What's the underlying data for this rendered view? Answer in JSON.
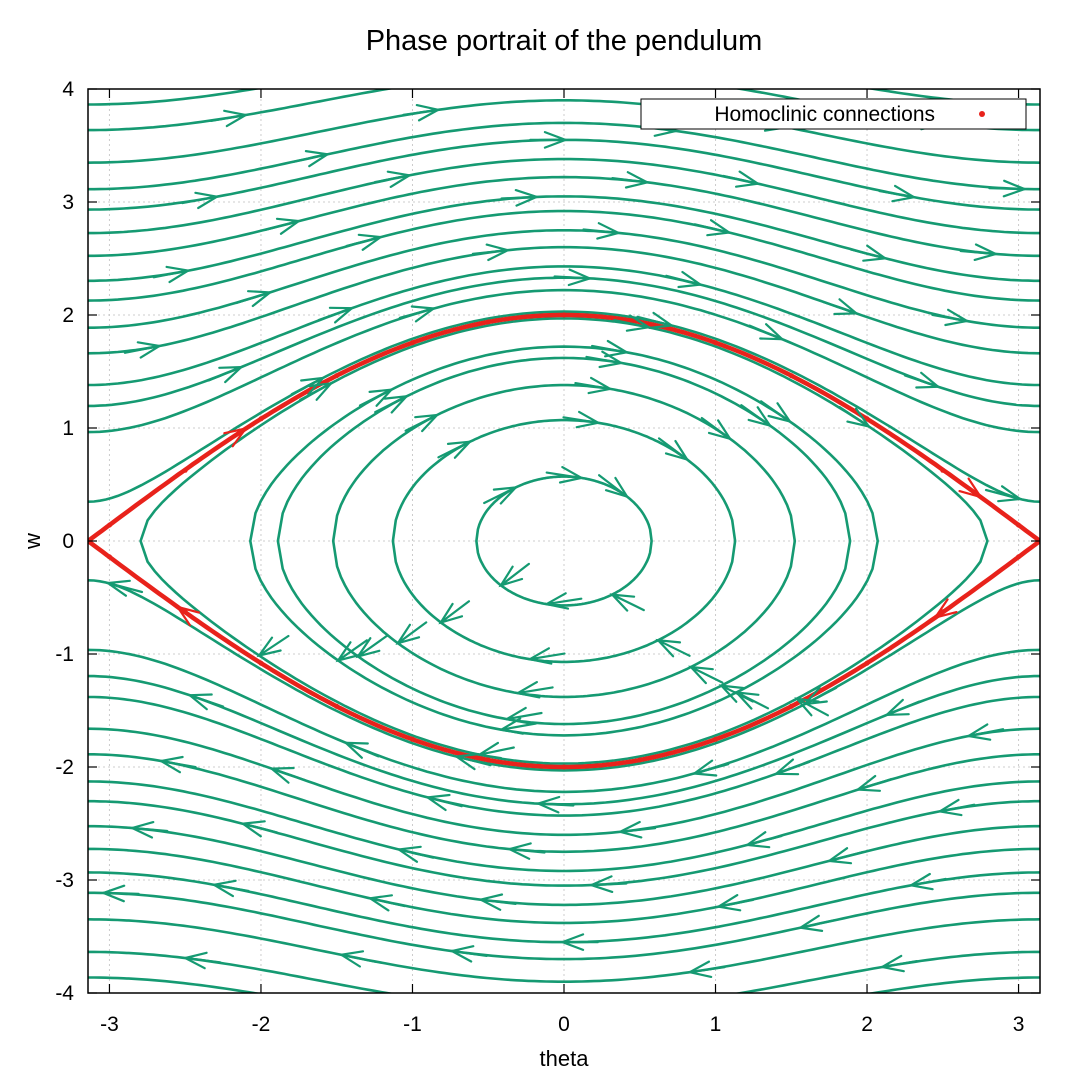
{
  "chart_data": {
    "type": "line",
    "title": "Phase portrait of the pendulum",
    "xlabel": "theta",
    "ylabel": "w",
    "xlim": [
      -3.14159,
      3.14159
    ],
    "ylim": [
      -4,
      4
    ],
    "x_ticks": [
      -3,
      -2,
      -1,
      0,
      1,
      2,
      3
    ],
    "y_ticks": [
      -4,
      -3,
      -2,
      -1,
      0,
      1,
      2,
      3,
      4
    ],
    "grid": true,
    "legend": {
      "position": "top-right",
      "entries": [
        "Homoclinic connections"
      ]
    },
    "colors": {
      "trajectories": "#159a72",
      "homoclinic": "#e8221b",
      "grid": "#cccccc"
    },
    "system": "d(theta)/dt = w, d(w)/dt = -sin(theta)",
    "series": [
      {
        "name": "Homoclinic connections",
        "kind": "separatrix",
        "energy_w0": 2,
        "points": [
          [
            -3.14159,
            0
          ],
          [
            -3,
            0.141
          ],
          [
            -2.5,
            0.626
          ],
          [
            -2,
            1.081
          ],
          [
            -1.5,
            1.463
          ],
          [
            -1,
            1.755
          ],
          [
            -0.5,
            1.938
          ],
          [
            0,
            2
          ],
          [
            0.5,
            1.938
          ],
          [
            1,
            1.755
          ],
          [
            1.5,
            1.463
          ],
          [
            2,
            1.081
          ],
          [
            2.5,
            0.626
          ],
          [
            3,
            0.141
          ],
          [
            3.14159,
            0
          ]
        ]
      },
      {
        "name": "",
        "kind": "closed",
        "energy_w0": 0.57
      },
      {
        "name": "",
        "kind": "closed",
        "energy_w0": 1.07
      },
      {
        "name": "",
        "kind": "closed",
        "energy_w0": 1.38
      },
      {
        "name": "",
        "kind": "closed",
        "energy_w0": 1.62
      },
      {
        "name": "",
        "kind": "closed",
        "energy_w0": 1.72
      },
      {
        "name": "",
        "kind": "closed",
        "energy_w0": 1.97
      },
      {
        "name": "",
        "kind": "rotating",
        "energy_w0": 2.03
      },
      {
        "name": "",
        "kind": "rotating",
        "energy_w0": 2.22
      },
      {
        "name": "",
        "kind": "rotating",
        "energy_w0": 2.33
      },
      {
        "name": "",
        "kind": "rotating",
        "energy_w0": 2.43
      },
      {
        "name": "",
        "kind": "rotating",
        "energy_w0": 2.6
      },
      {
        "name": "",
        "kind": "rotating",
        "energy_w0": 2.75
      },
      {
        "name": "",
        "kind": "rotating",
        "energy_w0": 2.92
      },
      {
        "name": "",
        "kind": "rotating",
        "energy_w0": 3.05
      },
      {
        "name": "",
        "kind": "rotating",
        "energy_w0": 3.22
      },
      {
        "name": "",
        "kind": "rotating",
        "energy_w0": 3.38
      },
      {
        "name": "",
        "kind": "rotating",
        "energy_w0": 3.55
      },
      {
        "name": "",
        "kind": "rotating",
        "energy_w0": 3.7
      },
      {
        "name": "",
        "kind": "rotating",
        "energy_w0": 3.9
      },
      {
        "name": "",
        "kind": "rotating",
        "energy_w0": 4.15
      },
      {
        "name": "",
        "kind": "rotating",
        "energy_w0": 4.35
      }
    ]
  }
}
